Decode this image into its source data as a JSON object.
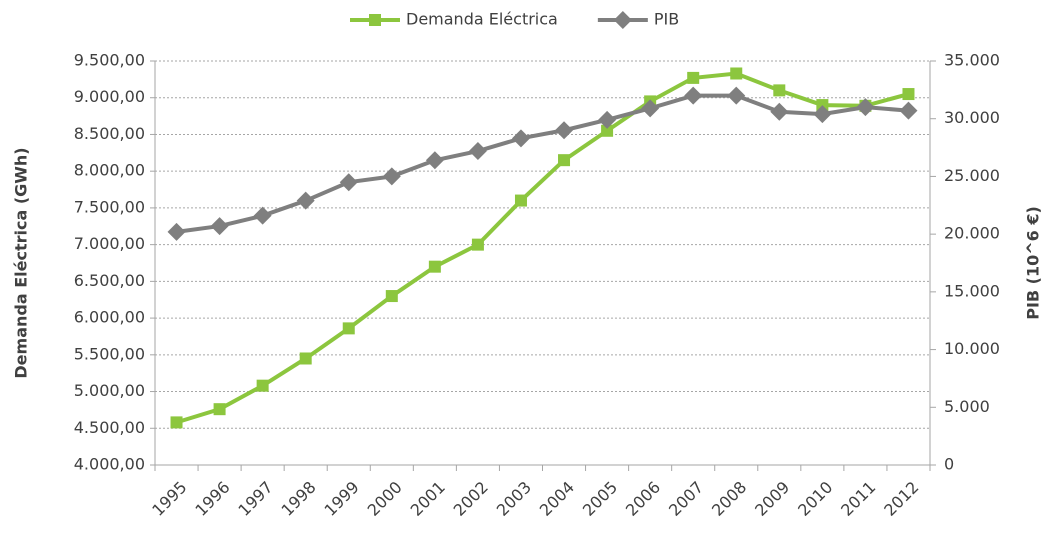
{
  "chart_data": {
    "type": "line",
    "categories": [
      "1995",
      "1996",
      "1997",
      "1998",
      "1999",
      "2000",
      "2001",
      "2002",
      "2003",
      "2004",
      "2005",
      "2006",
      "2007",
      "2008",
      "2009",
      "2010",
      "2011",
      "2012"
    ],
    "series": [
      {
        "name": "Demanda Eléctrica",
        "color": "#8cc63e",
        "marker": "square",
        "values": [
          4580,
          4760,
          5080,
          5450,
          5860,
          6300,
          6700,
          7000,
          7600,
          8150,
          8550,
          8950,
          9270,
          9330,
          9100,
          8900,
          8890,
          9050
        ]
      },
      {
        "name": "PIB",
        "color": "#7f7f7f",
        "marker": "diamond",
        "axis": "y2",
        "values": [
          20200,
          20700,
          21600,
          22900,
          24500,
          25000,
          26400,
          27200,
          28300,
          29000,
          29900,
          30900,
          32000,
          32000,
          30600,
          30400,
          31000,
          30700
        ]
      }
    ],
    "ylabel": "Demanda Eléctrica (GWh)",
    "y2label": "PIB (10^6 €)",
    "ylim": [
      4000,
      9500
    ],
    "yticks": [
      {
        "value": 4000,
        "label": "4.000,00"
      },
      {
        "value": 4500,
        "label": "4.500,00"
      },
      {
        "value": 5000,
        "label": "5.000,00"
      },
      {
        "value": 5500,
        "label": "5.500,00"
      },
      {
        "value": 6000,
        "label": "6.000,00"
      },
      {
        "value": 6500,
        "label": "6.500,00"
      },
      {
        "value": 7000,
        "label": "7.000,00"
      },
      {
        "value": 7500,
        "label": "7.500,00"
      },
      {
        "value": 8000,
        "label": "8.000,00"
      },
      {
        "value": 8500,
        "label": "8.500,00"
      },
      {
        "value": 9000,
        "label": "9.000,00"
      },
      {
        "value": 9500,
        "label": "9.500,00"
      }
    ],
    "y2lim": [
      0,
      35000
    ],
    "y2ticks": [
      0,
      {
        "value": 5000,
        "label": "5.000"
      },
      {
        "value": 10000,
        "label": "10.000"
      },
      {
        "value": 15000,
        "label": "15.000"
      },
      {
        "value": 20000,
        "label": "20.000"
      },
      {
        "value": 25000,
        "label": "25.000"
      },
      {
        "value": 30000,
        "label": "30.000"
      },
      {
        "value": 35000,
        "label": "35.000"
      }
    ],
    "grid": true,
    "legend": "top"
  }
}
